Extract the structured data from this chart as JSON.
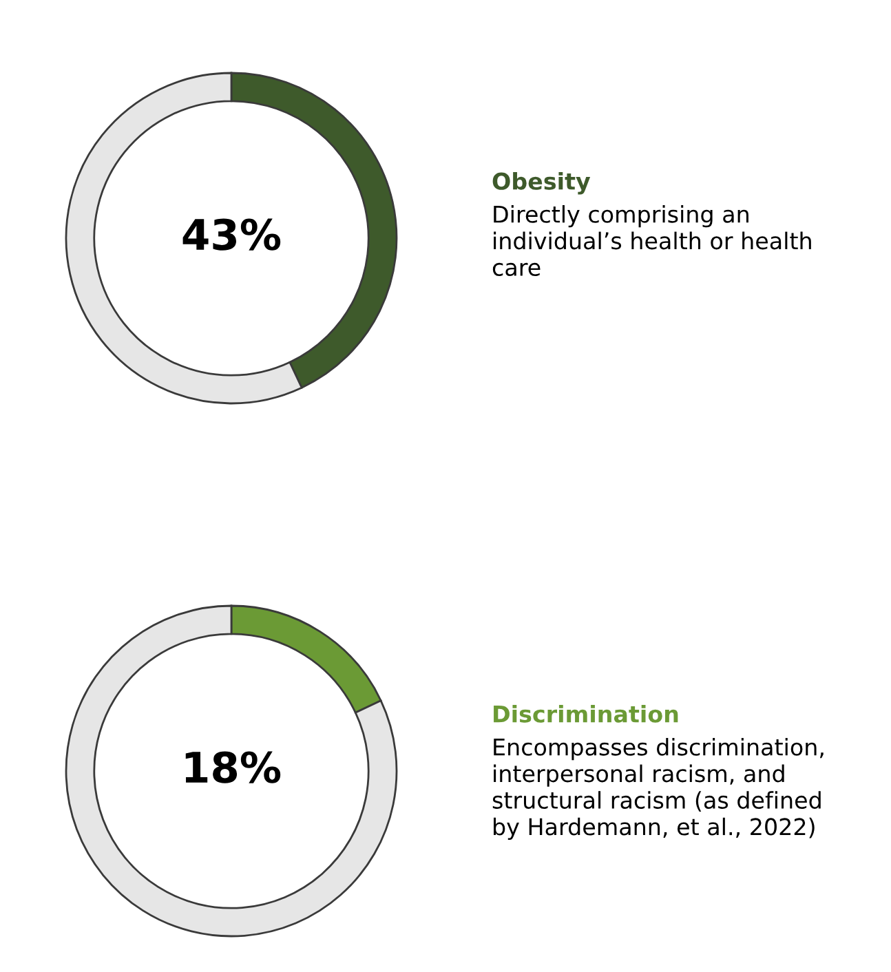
{
  "chart_data": [
    {
      "type": "donut",
      "title": "Obesity",
      "subtitle": "Directly comprising an\nindividual’s health or health\ncare",
      "categories": [
        null,
        null
      ],
      "values": [
        43,
        57
      ],
      "colors": [
        "#3e5a2b",
        "#e6e6e6"
      ],
      "value_labels": [
        "43%",
        null
      ]
    },
    {
      "type": "donut",
      "title": "Discrimination",
      "subtitle": "Encompasses discrimination,\ninterpersonal racism, and\nstructural racism (as defined\nby Hardemann, et al., 2022)",
      "categories": [
        null,
        null
      ],
      "values": [
        18,
        82
      ],
      "colors": [
        "#6b9a35",
        "#e6e6e6"
      ],
      "value_labels": [
        "18%",
        null
      ]
    }
  ]
}
